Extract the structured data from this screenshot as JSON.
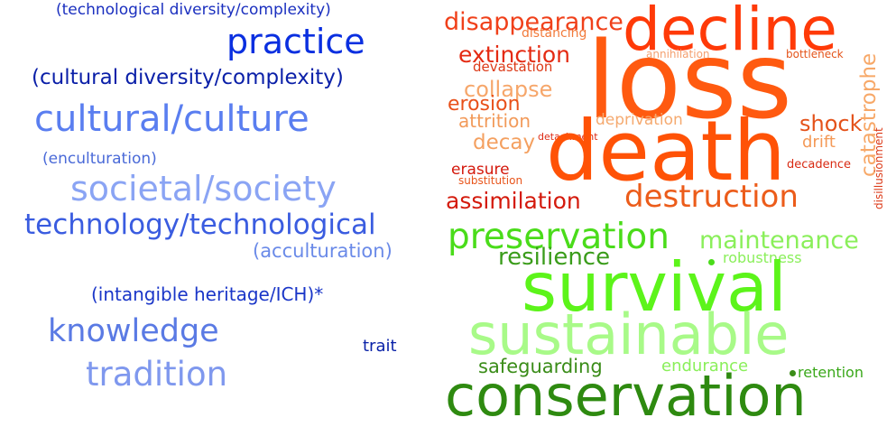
{
  "words": {
    "w01": {
      "text": "(technological diversity/complexity)",
      "color": "#1a2fbf"
    },
    "w02": {
      "text": "practice",
      "color": "#0a2fe0"
    },
    "w03": {
      "text": "(cultural diversity/complexity)",
      "color": "#0a1fa8"
    },
    "w04": {
      "text": "cultural/culture",
      "color": "#5a7ef0"
    },
    "w05": {
      "text": "(enculturation)",
      "color": "#4a6ad8"
    },
    "w06": {
      "text": "societal/society",
      "color": "#8aa4f4"
    },
    "w07": {
      "text": "technology/technological",
      "color": "#3a5ce0"
    },
    "w08": {
      "text": "(acculturation)",
      "color": "#6a8ae8"
    },
    "w09": {
      "text": "(intangible heritage/ICH)*",
      "color": "#1a36c8"
    },
    "w10": {
      "text": "knowledge",
      "color": "#5a7ae4"
    },
    "w11": {
      "text": "trait",
      "color": "#0a22a8"
    },
    "w12": {
      "text": "tradition",
      "color": "#7f98ee"
    },
    "w13": {
      "text": "disappearance",
      "color": "#f0401a"
    },
    "w14": {
      "text": "decline",
      "color": "#ff3a08"
    },
    "w15": {
      "text": "distancing",
      "color": "#f27a3a"
    },
    "w16": {
      "text": "extinction",
      "color": "#e42a12"
    },
    "w17": {
      "text": "annihilation",
      "color": "#f4a070"
    },
    "w18": {
      "text": "bottleneck",
      "color": "#e4541a"
    },
    "w19": {
      "text": "devastation",
      "color": "#dc3a18"
    },
    "w20": {
      "text": "loss",
      "color": "#ff5a10"
    },
    "w21": {
      "text": "catastrophe",
      "color": "#f7a868"
    },
    "w22": {
      "text": "collapse",
      "color": "#f6a66a"
    },
    "w23": {
      "text": "erosion",
      "color": "#e8501a"
    },
    "w24": {
      "text": "attrition",
      "color": "#f29a5a"
    },
    "w25": {
      "text": "deprivation",
      "color": "#f5aa70"
    },
    "w26": {
      "text": "shock",
      "color": "#e4521a"
    },
    "w27": {
      "text": "decay",
      "color": "#f4a060"
    },
    "w28": {
      "text": "detachment",
      "color": "#dc2a14"
    },
    "w29": {
      "text": "death",
      "color": "#ff5206"
    },
    "w30": {
      "text": "drift",
      "color": "#f49a58"
    },
    "w31": {
      "text": "disillusionment",
      "color": "#dc3a18"
    },
    "w32": {
      "text": "erasure",
      "color": "#d4180c"
    },
    "w33": {
      "text": "decadence",
      "color": "#d82a12"
    },
    "w34": {
      "text": "substitution",
      "color": "#e8541a"
    },
    "w35": {
      "text": "assimilation",
      "color": "#d41a0c"
    },
    "w36": {
      "text": "destruction",
      "color": "#ec5c1a"
    },
    "w37": {
      "text": "preservation",
      "color": "#4adc1a"
    },
    "w38": {
      "text": "maintenance",
      "color": "#8aef5a"
    },
    "w39": {
      "text": "resilience",
      "color": "#3a9c1a"
    },
    "w40": {
      "text": "robustness",
      "color": "#8aef5a"
    },
    "w41": {
      "text": "survival",
      "color": "#5cf41a"
    },
    "w42": {
      "text": "sustainable",
      "color": "#a8fa88"
    },
    "w43": {
      "text": "safeguarding",
      "color": "#3a8c18"
    },
    "w44": {
      "text": "endurance",
      "color": "#8aef5a"
    },
    "w45": {
      "text": "retention",
      "color": "#3aa81a"
    },
    "w46": {
      "text": "conservation",
      "color": "#2e8a10"
    }
  },
  "dots": {
    "d1": {
      "color": "#4adc1a"
    },
    "d2": {
      "color": "#3a8c18"
    }
  }
}
